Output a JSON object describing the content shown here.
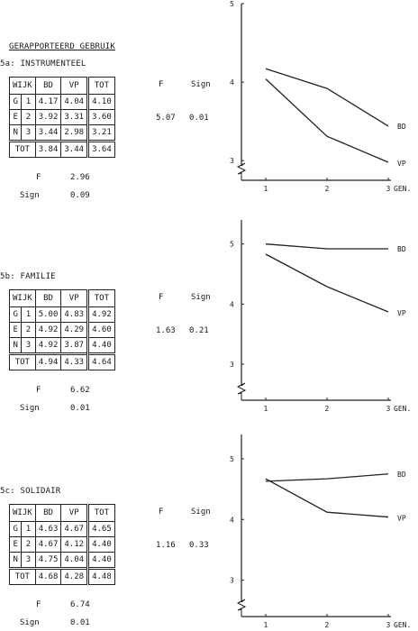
{
  "page": {
    "title": "GERAPPORTEERD GEBRUIK"
  },
  "sections": [
    {
      "title": "5a: INSTRUMENTEEL",
      "header": {
        "wijk": "WIJK",
        "bd": "BD",
        "vp": "VP",
        "tot": "TOT",
        "f": "F",
        "sign": "Sign"
      },
      "group_letters": [
        "G",
        "E",
        "N"
      ],
      "rows": [
        {
          "idx": "1",
          "bd": "4.17",
          "vp": "4.04",
          "tot": "4.10"
        },
        {
          "idx": "2",
          "bd": "3.92",
          "vp": "3.31",
          "tot": "3.60"
        },
        {
          "idx": "3",
          "bd": "3.44",
          "vp": "2.98",
          "tot": "3.21"
        }
      ],
      "total_row": {
        "label": "TOT",
        "bd": "3.84",
        "vp": "3.44",
        "tot": "3.64"
      },
      "row_f": "5.07",
      "row_sign": "0.01",
      "col_f_label": "F",
      "col_f": "2.96",
      "col_sign_label": "Sign",
      "col_sign": "0.09"
    },
    {
      "title": "5b: FAMILIE",
      "header": {
        "wijk": "WIJK",
        "bd": "BD",
        "vp": "VP",
        "tot": "TOT",
        "f": "F",
        "sign": "Sign"
      },
      "group_letters": [
        "G",
        "E",
        "N"
      ],
      "rows": [
        {
          "idx": "1",
          "bd": "5.00",
          "vp": "4.83",
          "tot": "4.92"
        },
        {
          "idx": "2",
          "bd": "4.92",
          "vp": "4.29",
          "tot": "4.60"
        },
        {
          "idx": "3",
          "bd": "4.92",
          "vp": "3.87",
          "tot": "4.40"
        }
      ],
      "total_row": {
        "label": "TOT",
        "bd": "4.94",
        "vp": "4.33",
        "tot": "4.64"
      },
      "row_f": "1.63",
      "row_sign": "0.21",
      "col_f_label": "F",
      "col_f": "6.62",
      "col_sign_label": "Sign",
      "col_sign": "0.01"
    },
    {
      "title": "5c: SOLIDAIR",
      "header": {
        "wijk": "WIJK",
        "bd": "BD",
        "vp": "VP",
        "tot": "TOT",
        "f": "F",
        "sign": "Sign"
      },
      "group_letters": [
        "G",
        "E",
        "N"
      ],
      "rows": [
        {
          "idx": "1",
          "bd": "4.63",
          "vp": "4.67",
          "tot": "4.65"
        },
        {
          "idx": "2",
          "bd": "4.67",
          "vp": "4.12",
          "tot": "4.40"
        },
        {
          "idx": "3",
          "bd": "4.75",
          "vp": "4.04",
          "tot": "4.40"
        }
      ],
      "total_row": {
        "label": "TOT",
        "bd": "4.68",
        "vp": "4.28",
        "tot": "4.48"
      },
      "row_f": "1.16",
      "row_sign": "0.33",
      "col_f_label": "F",
      "col_f": "6.74",
      "col_sign_label": "Sign",
      "col_sign": "0.01"
    }
  ],
  "chart_data": [
    {
      "type": "line",
      "x": [
        1,
        2,
        3
      ],
      "x_tick_labels": [
        "1",
        "2",
        "3"
      ],
      "x_axis_label": "GEN.",
      "y_ticks": [
        3,
        4,
        5
      ],
      "ylim": [
        2.75,
        5.0
      ],
      "series": [
        {
          "name": "BD",
          "values": [
            4.17,
            3.92,
            3.44
          ]
        },
        {
          "name": "VP",
          "values": [
            4.04,
            3.31,
            2.98
          ]
        }
      ]
    },
    {
      "type": "line",
      "x": [
        1,
        2,
        3
      ],
      "x_tick_labels": [
        "1",
        "2",
        "3"
      ],
      "x_axis_label": "GEN.",
      "y_ticks": [
        3,
        4,
        5
      ],
      "ylim": [
        2.4,
        5.4
      ],
      "series": [
        {
          "name": "BD",
          "values": [
            5.0,
            4.92,
            4.92
          ]
        },
        {
          "name": "VP",
          "values": [
            4.83,
            4.29,
            3.87
          ]
        }
      ]
    },
    {
      "type": "line",
      "x": [
        1,
        2,
        3
      ],
      "x_tick_labels": [
        "1",
        "2",
        "3"
      ],
      "x_axis_label": "GEN.",
      "y_ticks": [
        3,
        4,
        5
      ],
      "ylim": [
        2.4,
        5.4
      ],
      "series": [
        {
          "name": "BD",
          "values": [
            4.63,
            4.67,
            4.75
          ]
        },
        {
          "name": "VP",
          "values": [
            4.67,
            4.12,
            4.04
          ]
        }
      ]
    }
  ]
}
